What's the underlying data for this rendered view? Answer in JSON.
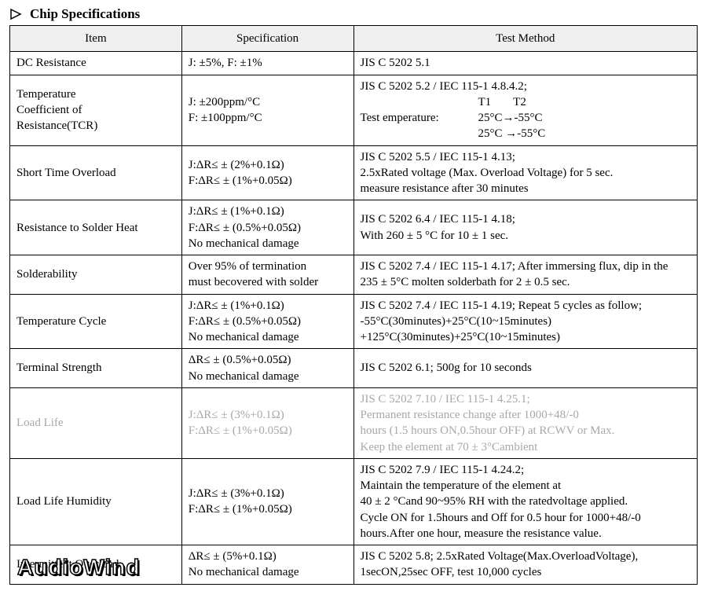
{
  "heading": "Chip Specifications",
  "columns": {
    "item": "Item",
    "spec": "Specification",
    "test": "Test Method"
  },
  "rows": [
    {
      "item": [
        "DC Resistance"
      ],
      "spec": [
        "J: ±5%, F: ±1%"
      ],
      "test": [
        "JIS C 5202 5.1"
      ]
    },
    {
      "item": [
        "Temperature",
        "Coefficient of",
        "Resistance(TCR)"
      ],
      "spec": [
        "J: ±200ppm/°C",
        "F: ±100ppm/°C"
      ],
      "test_tcr": {
        "top": "JIS C 5202 5.2 / IEC 115-1 4.8.4.2;",
        "t1": "T1",
        "t2": "T2",
        "label": "Test emperature:",
        "l1a": "25°C→-55°C",
        "l2a": "25°C →-55°C"
      }
    },
    {
      "item": [
        "Short Time Overload"
      ],
      "spec": [
        "J:ΔR≤ ± (2%+0.1Ω)",
        "F:ΔR≤ ± (1%+0.05Ω)"
      ],
      "test": [
        "JIS C 5202 5.5 / IEC 115-1 4.13;",
        "2.5xRated voltage (Max. Overload Voltage) for 5 sec.",
        "measure resistance after 30 minutes"
      ]
    },
    {
      "item": [
        "Resistance to Solder Heat"
      ],
      "spec": [
        "J:ΔR≤ ± (1%+0.1Ω)",
        "F:ΔR≤ ± (0.5%+0.05Ω)",
        "No mechanical damage"
      ],
      "test": [
        "JIS C 5202 6.4 / IEC 115-1 4.18;",
        "With 260 ± 5 °C for 10 ± 1 sec."
      ]
    },
    {
      "item": [
        "Solderability"
      ],
      "spec": [
        "Over 95% of termination",
        "must becovered with solder"
      ],
      "test": [
        "JIS C 5202 7.4 / IEC 115-1 4.17; After immersing flux, dip in the",
        "235 ± 5°C molten solderbath for 2 ± 0.5 sec."
      ]
    },
    {
      "item": [
        "Temperature Cycle"
      ],
      "spec": [
        "J:ΔR≤ ± (1%+0.1Ω)",
        "F:ΔR≤ ± (0.5%+0.05Ω)",
        "No mechanical damage"
      ],
      "test": [
        "JIS C 5202 7.4 / IEC 115-1 4.19; Repeat 5 cycles as follow;",
        "-55°C(30minutes)+25°C(10~15minutes)",
        "+125°C(30minutes)+25°C(10~15minutes)"
      ]
    },
    {
      "item": [
        "Terminal Strength"
      ],
      "spec": [
        "ΔR≤ ± (0.5%+0.05Ω)",
        "No mechanical damage"
      ],
      "test": [
        "JIS C 5202 6.1; 500g for 10 seconds"
      ]
    },
    {
      "faint": true,
      "item": [
        "Load Life"
      ],
      "spec": [
        "J:ΔR≤ ± (3%+0.1Ω)",
        "F:ΔR≤ ± (1%+0.05Ω)"
      ],
      "test": [
        "JIS C 5202 7.10 / IEC 115-1 4.25.1;",
        "Permanent resistance change after 1000+48/-0",
        "hours (1.5 hours ON,0.5hour OFF) at RCWV or Max.",
        "Keep the element at 70 ± 3°Cambient"
      ]
    },
    {
      "item": [
        "Load Life Humidity"
      ],
      "spec": [
        "J:ΔR≤ ± (3%+0.1Ω)",
        "F:ΔR≤ ± (1%+0.05Ω)"
      ],
      "test": [
        "JIS C 5202 7.9 / IEC 115-1 4.24.2;",
        "Maintain the temperature of the element at",
        "40 ± 2 °Cand 90~95% RH with the ratedvoltage applied.",
        "Cycle ON for 1.5hours and Off for 0.5 hour for 1000+48/-0",
        "hours.After one hour, measure the resistance value."
      ]
    },
    {
      "item": [
        "Intermittent Overload"
      ],
      "spec": [
        "ΔR≤ ± (5%+0.1Ω)",
        "No mechanical damage"
      ],
      "test": [
        "JIS C 5202 5.8; 2.5xRated Voltage(Max.OverloadVoltage),",
        "1secON,25sec OFF, test 10,000 cycles"
      ]
    }
  ],
  "watermark": "AudioWind"
}
